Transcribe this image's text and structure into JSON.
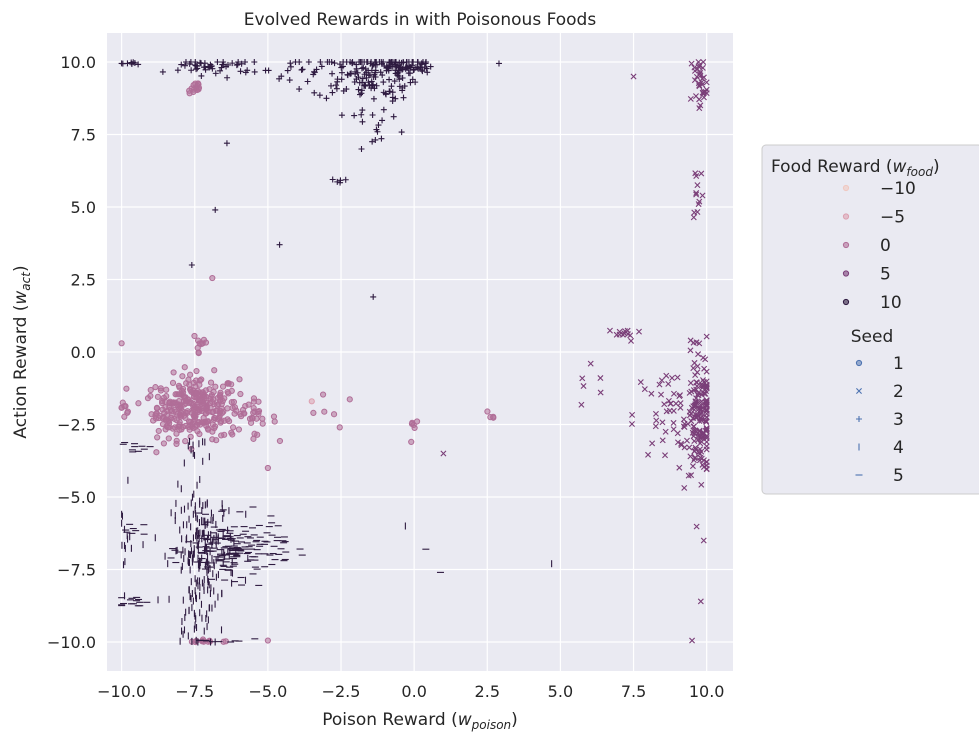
{
  "chart_data": {
    "type": "scatter",
    "title": "Evolved Rewards in with Poisonous Foods",
    "xlabel": "Poison Reward (w_poison)",
    "xlabel_main": "Poison Reward (",
    "xlabel_var": "w",
    "xlabel_sub": "poison",
    "xlabel_close": ")",
    "ylabel": "Action Reward (w_act)",
    "ylabel_main": "Action Reward (",
    "ylabel_var": "w",
    "ylabel_sub": "act",
    "ylabel_close": ")",
    "xlim": [
      -10.5,
      10.9
    ],
    "ylim": [
      -11.0,
      11.0
    ],
    "xticks": [
      -10.0,
      -7.5,
      -5.0,
      -2.5,
      0.0,
      2.5,
      5.0,
      7.5,
      10.0
    ],
    "xtick_labels": [
      "−10.0",
      "−7.5",
      "−5.0",
      "−2.5",
      "0.0",
      "2.5",
      "5.0",
      "7.5",
      "10.0"
    ],
    "yticks": [
      -10.0,
      -7.5,
      -5.0,
      -2.5,
      0.0,
      2.5,
      5.0,
      7.5,
      10.0
    ],
    "ytick_labels": [
      "−10.0",
      "−7.5",
      "−5.0",
      "−2.5",
      "0.0",
      "2.5",
      "5.0",
      "7.5",
      "10.0"
    ],
    "grid": true,
    "background": "#eaeaf2",
    "legend": {
      "position": "right",
      "hue_title_main": "Food Reward (",
      "hue_title_var": "w",
      "hue_title_sub": "food",
      "hue_title_close": ")",
      "hue_entries": [
        {
          "label": "−10",
          "color": "#f0c8c0"
        },
        {
          "label": "−5",
          "color": "#dca0b0"
        },
        {
          "label": "0",
          "color": "#b06e98"
        },
        {
          "label": "5",
          "color": "#7a3e78"
        },
        {
          "label": "10",
          "color": "#2e1a40"
        }
      ],
      "style_title": "Seed",
      "style_entries": [
        {
          "label": "1",
          "marker": "circle"
        },
        {
          "label": "2",
          "marker": "x"
        },
        {
          "label": "3",
          "marker": "plus"
        },
        {
          "label": "4",
          "marker": "vline"
        },
        {
          "label": "5",
          "marker": "hline"
        }
      ]
    },
    "clusters": [
      {
        "seed": 1,
        "food": 0,
        "cx": -7.4,
        "cy": -1.9,
        "sx": 0.7,
        "sy": 0.55,
        "n": 260
      },
      {
        "seed": 1,
        "food": 0,
        "cx": -8.4,
        "cy": -2.1,
        "sx": 0.4,
        "sy": 0.4,
        "n": 40
      },
      {
        "seed": 1,
        "food": 0,
        "cx": -5.6,
        "cy": -2.3,
        "sx": 0.45,
        "sy": 0.3,
        "n": 30
      },
      {
        "seed": 1,
        "food": 0,
        "cx": -7.5,
        "cy": 9.1,
        "sx": 0.12,
        "sy": 0.15,
        "n": 14
      },
      {
        "seed": 1,
        "food": 0,
        "cx": -7.3,
        "cy": 0.3,
        "sx": 0.15,
        "sy": 0.3,
        "n": 10
      },
      {
        "seed": 1,
        "food": 0,
        "cx": -9.9,
        "cy": -1.9,
        "sx": 0.1,
        "sy": 0.3,
        "n": 8
      },
      {
        "seed": 1,
        "food": 0,
        "cx": -7.0,
        "cy": -9.98,
        "sx": 0.5,
        "sy": 0.02,
        "n": 12
      },
      {
        "seed": 1,
        "food": 0,
        "cx": 0.0,
        "cy": -2.5,
        "sx": 0.1,
        "sy": 0.08,
        "n": 5
      },
      {
        "seed": 1,
        "food": 0,
        "cx": -3.0,
        "cy": -2.1,
        "sx": 0.5,
        "sy": 0.3,
        "n": 6
      },
      {
        "seed": 1,
        "food": 0,
        "cx": 2.6,
        "cy": -2.2,
        "sx": 0.1,
        "sy": 0.1,
        "n": 4
      },
      {
        "seed": 2,
        "food": 5,
        "cx": 9.8,
        "cy": -2.4,
        "sx": 0.25,
        "sy": 0.9,
        "n": 160
      },
      {
        "seed": 2,
        "food": 5,
        "cx": 8.7,
        "cy": -2.2,
        "sx": 0.6,
        "sy": 0.8,
        "n": 50
      },
      {
        "seed": 2,
        "food": 5,
        "cx": 7.2,
        "cy": 0.6,
        "sx": 0.3,
        "sy": 0.12,
        "n": 12
      },
      {
        "seed": 2,
        "food": 5,
        "cx": 9.8,
        "cy": 9.3,
        "sx": 0.2,
        "sy": 0.6,
        "n": 35
      },
      {
        "seed": 2,
        "food": 5,
        "cx": 9.7,
        "cy": 5.6,
        "sx": 0.1,
        "sy": 0.6,
        "n": 12
      },
      {
        "seed": 2,
        "food": 5,
        "cx": 9.6,
        "cy": 0.3,
        "sx": 0.3,
        "sy": 0.3,
        "n": 8
      },
      {
        "seed": 2,
        "food": 5,
        "cx": 6.2,
        "cy": -1.0,
        "sx": 0.4,
        "sy": 0.5,
        "n": 6
      },
      {
        "seed": 3,
        "food": 10,
        "cx": -1.7,
        "cy": 9.6,
        "sx": 0.9,
        "sy": 0.45,
        "n": 150
      },
      {
        "seed": 3,
        "food": 10,
        "cx": -0.3,
        "cy": 9.85,
        "sx": 0.5,
        "sy": 0.15,
        "n": 60
      },
      {
        "seed": 3,
        "food": 10,
        "cx": -6.8,
        "cy": 9.85,
        "sx": 0.8,
        "sy": 0.15,
        "n": 50
      },
      {
        "seed": 3,
        "food": 10,
        "cx": -9.7,
        "cy": 9.95,
        "sx": 0.25,
        "sy": 0.03,
        "n": 8
      },
      {
        "seed": 3,
        "food": 10,
        "cx": -2.5,
        "cy": 5.9,
        "sx": 0.15,
        "sy": 0.04,
        "n": 5
      },
      {
        "seed": 3,
        "food": 10,
        "cx": -4.0,
        "cy": 9.8,
        "sx": 0.4,
        "sy": 0.2,
        "n": 10
      },
      {
        "seed": 3,
        "food": 10,
        "cx": -1.5,
        "cy": 8.0,
        "sx": 0.5,
        "sy": 0.4,
        "n": 18
      },
      {
        "seed": 4,
        "food": 10,
        "cx": -7.2,
        "cy": -6.8,
        "sx": 0.55,
        "sy": 1.0,
        "n": 200
      },
      {
        "seed": 4,
        "food": 10,
        "cx": -7.4,
        "cy": -9.0,
        "sx": 0.3,
        "sy": 0.8,
        "n": 40
      },
      {
        "seed": 4,
        "food": 10,
        "cx": -9.9,
        "cy": -6.5,
        "sx": 0.1,
        "sy": 0.8,
        "n": 15
      },
      {
        "seed": 4,
        "food": 10,
        "cx": -7.5,
        "cy": -3.4,
        "sx": 0.3,
        "sy": 0.3,
        "n": 12
      },
      {
        "seed": 5,
        "food": 10,
        "cx": -6.2,
        "cy": -6.8,
        "sx": 0.8,
        "sy": 0.5,
        "n": 170
      },
      {
        "seed": 5,
        "food": 10,
        "cx": -9.6,
        "cy": -8.6,
        "sx": 0.3,
        "sy": 0.1,
        "n": 15
      },
      {
        "seed": 5,
        "food": 10,
        "cx": -9.5,
        "cy": -3.3,
        "sx": 0.25,
        "sy": 0.1,
        "n": 10
      },
      {
        "seed": 5,
        "food": 10,
        "cx": -9.7,
        "cy": -6.1,
        "sx": 0.25,
        "sy": 0.1,
        "n": 8
      },
      {
        "seed": 5,
        "food": 10,
        "cx": -6.5,
        "cy": -9.95,
        "sx": 0.5,
        "sy": 0.05,
        "n": 10
      },
      {
        "seed": 5,
        "food": 10,
        "cx": -4.5,
        "cy": -6.6,
        "sx": 0.4,
        "sy": 0.4,
        "n": 10
      }
    ],
    "outliers": [
      {
        "seed": 3,
        "food": 10,
        "x": -4.6,
        "y": 3.7
      },
      {
        "seed": 3,
        "food": 10,
        "x": -6.4,
        "y": 7.2
      },
      {
        "seed": 3,
        "food": 10,
        "x": -6.8,
        "y": 4.9
      },
      {
        "seed": 3,
        "food": 10,
        "x": -1.4,
        "y": 1.9
      },
      {
        "seed": 3,
        "food": 10,
        "x": 2.9,
        "y": 9.95
      },
      {
        "seed": 3,
        "food": 10,
        "x": -1.8,
        "y": 7.0
      },
      {
        "seed": 3,
        "food": 10,
        "x": -7.6,
        "y": 3.0
      },
      {
        "seed": 2,
        "food": 5,
        "x": 1.0,
        "y": -3.5
      },
      {
        "seed": 2,
        "food": 5,
        "x": 7.5,
        "y": 9.5
      },
      {
        "seed": 2,
        "food": 5,
        "x": 9.8,
        "y": -8.6
      },
      {
        "seed": 2,
        "food": 5,
        "x": 9.5,
        "y": -9.95
      },
      {
        "seed": 2,
        "food": 5,
        "x": 9.9,
        "y": -6.5
      },
      {
        "seed": 4,
        "food": 10,
        "x": 4.7,
        "y": -7.3
      },
      {
        "seed": 4,
        "food": 10,
        "x": -0.3,
        "y": -6.0
      },
      {
        "seed": 5,
        "food": 10,
        "x": 0.4,
        "y": -6.8
      },
      {
        "seed": 5,
        "food": 10,
        "x": 0.9,
        "y": -7.6
      },
      {
        "seed": 1,
        "food": -5,
        "x": -3.5,
        "y": -1.7
      },
      {
        "seed": 1,
        "food": 0,
        "x": -6.9,
        "y": 2.55
      },
      {
        "seed": 1,
        "food": 0,
        "x": -10.0,
        "y": 0.3
      },
      {
        "seed": 1,
        "food": 0,
        "x": -0.1,
        "y": -3.1
      },
      {
        "seed": 1,
        "food": 0,
        "x": -5.0,
        "y": -4.0
      },
      {
        "seed": 1,
        "food": 0,
        "x": -5.0,
        "y": -9.95
      }
    ],
    "hue_colors": {
      "-10": "#f0c8c0",
      "-5": "#dca0b0",
      "0": "#b06e98",
      "5": "#7a3e78",
      "10": "#2e1a40"
    }
  }
}
